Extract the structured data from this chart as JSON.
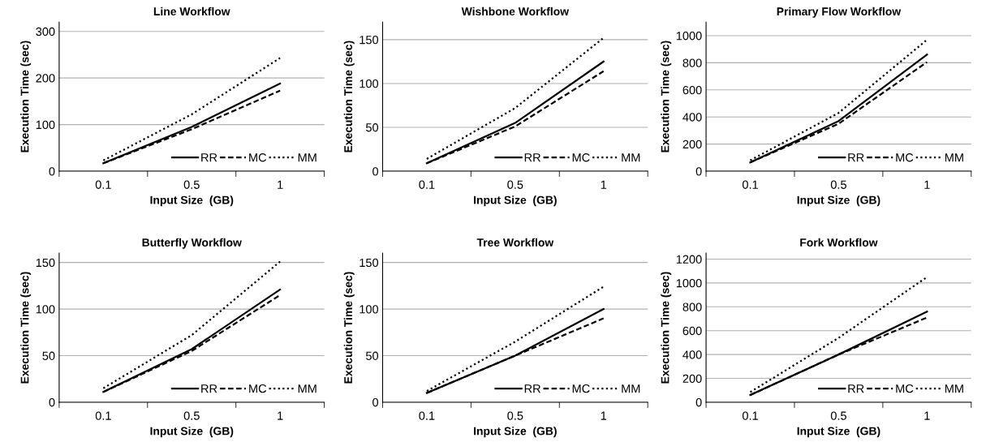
{
  "chart_data": [
    {
      "type": "line",
      "title": "Line Workflow",
      "xlabel": "Input Size  (GB)",
      "ylabel": "Execution Time (sec)",
      "categories": [
        "0.1",
        "0.5",
        "1"
      ],
      "ylim": [
        0,
        320
      ],
      "yticks": [
        0,
        100,
        200,
        300
      ],
      "grid": "y",
      "legend": "bottom right",
      "series": [
        {
          "name": "RR",
          "color": "#000000",
          "line_style": "solid",
          "values": [
            17,
            95,
            188
          ]
        },
        {
          "name": "MC",
          "color": "#000000",
          "line_style": "dashed",
          "values": [
            17,
            90,
            173
          ]
        },
        {
          "name": "MM",
          "color": "#000000",
          "line_style": "dotted",
          "values": [
            23,
            122,
            243
          ]
        }
      ]
    },
    {
      "type": "line",
      "title": "Wishbone Workflow",
      "xlabel": "Input Size  (GB)",
      "ylabel": "Execution Time (sec)",
      "categories": [
        "0.1",
        "0.5",
        "1"
      ],
      "ylim": [
        0,
        170
      ],
      "yticks": [
        0,
        50,
        100,
        150
      ],
      "grid": "y",
      "legend": "bottom right",
      "series": [
        {
          "name": "RR",
          "color": "#000000",
          "line_style": "solid",
          "values": [
            9,
            55,
            125
          ]
        },
        {
          "name": "MC",
          "color": "#000000",
          "line_style": "dashed",
          "values": [
            9,
            51,
            114
          ]
        },
        {
          "name": "MM",
          "color": "#000000",
          "line_style": "dotted",
          "values": [
            14,
            72,
            152
          ]
        }
      ]
    },
    {
      "type": "line",
      "title": "Primary Flow Workflow",
      "xlabel": "Input Size  (GB)",
      "ylabel": "Execution Time (sec)",
      "categories": [
        "0.1",
        "0.5",
        "1"
      ],
      "ylim": [
        0,
        1100
      ],
      "yticks": [
        0,
        200,
        400,
        600,
        800,
        1000
      ],
      "grid": "y",
      "legend": "bottom right",
      "series": [
        {
          "name": "RR",
          "color": "#000000",
          "line_style": "solid",
          "values": [
            65,
            370,
            860
          ]
        },
        {
          "name": "MC",
          "color": "#000000",
          "line_style": "dashed",
          "values": [
            65,
            350,
            805
          ]
        },
        {
          "name": "MM",
          "color": "#000000",
          "line_style": "dotted",
          "values": [
            80,
            430,
            970
          ]
        }
      ]
    },
    {
      "type": "line",
      "title": "Butterfly Workflow",
      "xlabel": "Input Size  (GB)",
      "ylabel": "Execution Time (sec)",
      "categories": [
        "0.1",
        "0.5",
        "1"
      ],
      "ylim": [
        0,
        160
      ],
      "yticks": [
        0,
        50,
        100,
        150
      ],
      "grid": "y",
      "legend": "bottom right",
      "series": [
        {
          "name": "RR",
          "color": "#000000",
          "line_style": "solid",
          "values": [
            11,
            57,
            121
          ]
        },
        {
          "name": "MC",
          "color": "#000000",
          "line_style": "dashed",
          "values": [
            11,
            55,
            115
          ]
        },
        {
          "name": "MM",
          "color": "#000000",
          "line_style": "dotted",
          "values": [
            15,
            72,
            151
          ]
        }
      ]
    },
    {
      "type": "line",
      "title": "Tree Workflow",
      "xlabel": "Input Size  (GB)",
      "ylabel": "Execution Time (sec)",
      "categories": [
        "0.1",
        "0.5",
        "1"
      ],
      "ylim": [
        0,
        160
      ],
      "yticks": [
        0,
        50,
        100,
        150
      ],
      "grid": "y",
      "legend": "bottom right",
      "series": [
        {
          "name": "RR",
          "color": "#000000",
          "line_style": "solid",
          "values": [
            10,
            50,
            100
          ]
        },
        {
          "name": "MC",
          "color": "#000000",
          "line_style": "dashed",
          "values": [
            10,
            50,
            90
          ]
        },
        {
          "name": "MM",
          "color": "#000000",
          "line_style": "dotted",
          "values": [
            12,
            65,
            124
          ]
        }
      ]
    },
    {
      "type": "line",
      "title": "Fork Workflow",
      "xlabel": "Input Size  (GB)",
      "ylabel": "Execution Time (sec)",
      "categories": [
        "0.1",
        "0.5",
        "1"
      ],
      "ylim": [
        0,
        1250
      ],
      "yticks": [
        0,
        200,
        400,
        600,
        800,
        1000,
        1200
      ],
      "grid": "y",
      "legend": "bottom right",
      "series": [
        {
          "name": "RR",
          "color": "#000000",
          "line_style": "solid",
          "values": [
            60,
            400,
            760
          ]
        },
        {
          "name": "MC",
          "color": "#000000",
          "line_style": "dashed",
          "values": [
            60,
            400,
            710
          ]
        },
        {
          "name": "MM",
          "color": "#000000",
          "line_style": "dotted",
          "values": [
            85,
            540,
            1050
          ]
        }
      ]
    }
  ]
}
